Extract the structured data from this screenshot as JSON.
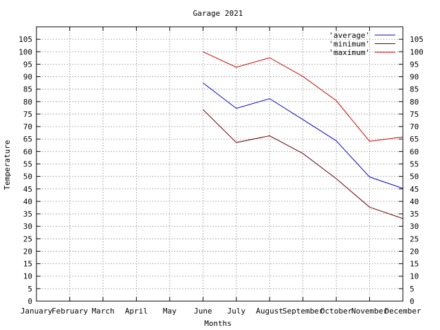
{
  "chart_data": {
    "type": "line",
    "title": "Garage 2021",
    "xlabel": "Months",
    "ylabel": "Temperature",
    "categories": [
      "January",
      "February",
      "March",
      "April",
      "May",
      "June",
      "July",
      "August",
      "September",
      "October",
      "November",
      "December"
    ],
    "ylim": [
      0,
      110
    ],
    "yticks": [
      0,
      5,
      10,
      15,
      20,
      25,
      30,
      35,
      40,
      45,
      50,
      55,
      60,
      65,
      70,
      75,
      80,
      85,
      90,
      95,
      100,
      105
    ],
    "grid": true,
    "legend_position": "top-right",
    "series": [
      {
        "name": "'average'",
        "color": "#0000cc",
        "values": [
          null,
          null,
          null,
          null,
          null,
          87.5,
          77.3,
          81.2,
          72.8,
          64.3,
          49.8,
          45.2
        ]
      },
      {
        "name": "'minimum'",
        "color": "#660000",
        "values": [
          null,
          null,
          null,
          null,
          null,
          76.8,
          63.6,
          66.3,
          59.2,
          49.1,
          37.7,
          33.1
        ]
      },
      {
        "name": "'maximum'",
        "color": "#cc0000",
        "values": [
          null,
          null,
          null,
          null,
          null,
          100.0,
          93.8,
          97.6,
          90.1,
          80.4,
          64.1,
          65.8
        ]
      }
    ]
  }
}
